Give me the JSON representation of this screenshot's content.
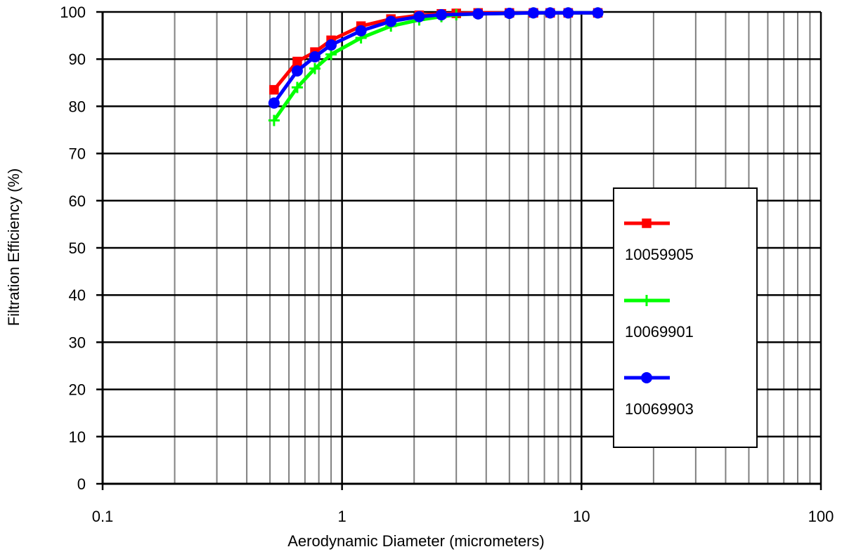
{
  "chart_data": {
    "type": "line",
    "title": "",
    "xlabel": "Aerodynamic Diameter (micrometers)",
    "ylabel": "Filtration Efficiency (%)",
    "x_scale": "log",
    "xlim": [
      0.1,
      100
    ],
    "ylim": [
      0,
      100
    ],
    "x_ticks": [
      0.1,
      1,
      10,
      100
    ],
    "x_tick_labels": [
      "0.1",
      "1",
      "10",
      "100"
    ],
    "y_ticks": [
      0,
      10,
      20,
      30,
      40,
      50,
      60,
      70,
      80,
      90,
      100
    ],
    "y_tick_labels": [
      "0",
      "10",
      "20",
      "30",
      "40",
      "50",
      "60",
      "70",
      "80",
      "90",
      "100"
    ],
    "grid": true,
    "legend_position": "right",
    "series": [
      {
        "name": "10059905",
        "color": "#ff0000",
        "marker": "square",
        "points": [
          [
            0.52,
            83.5
          ],
          [
            0.65,
            89.5
          ],
          [
            0.77,
            91.5
          ],
          [
            0.9,
            94.0
          ],
          [
            1.2,
            97.0
          ],
          [
            1.6,
            98.5
          ],
          [
            2.1,
            99.3
          ],
          [
            2.6,
            99.6
          ],
          [
            3.0,
            99.7
          ],
          [
            3.7,
            99.8
          ],
          [
            5.0,
            99.8
          ],
          [
            6.3,
            99.8
          ],
          [
            7.4,
            99.8
          ],
          [
            8.8,
            99.8
          ],
          [
            11.7,
            99.8
          ]
        ]
      },
      {
        "name": "10069901",
        "color": "#00ff00",
        "marker": "plus",
        "points": [
          [
            0.52,
            77.0
          ],
          [
            0.65,
            84.0
          ],
          [
            0.77,
            88.0
          ],
          [
            0.9,
            91.0
          ],
          [
            1.2,
            94.5
          ],
          [
            1.6,
            97.0
          ],
          [
            2.1,
            98.3
          ],
          [
            2.6,
            99.0
          ],
          [
            3.0,
            99.4
          ],
          [
            3.7,
            99.6
          ],
          [
            5.0,
            99.7
          ],
          [
            6.3,
            99.8
          ],
          [
            7.4,
            99.8
          ],
          [
            8.8,
            99.8
          ],
          [
            11.7,
            99.8
          ]
        ]
      },
      {
        "name": "10069903",
        "color": "#0000ff",
        "marker": "circle",
        "points": [
          [
            0.52,
            80.7
          ],
          [
            0.65,
            87.5
          ],
          [
            0.77,
            90.5
          ],
          [
            0.9,
            93.0
          ],
          [
            1.2,
            96.0
          ],
          [
            1.6,
            98.0
          ],
          [
            2.1,
            99.0
          ],
          [
            2.6,
            99.4
          ],
          [
            3.7,
            99.6
          ],
          [
            5.0,
            99.7
          ],
          [
            6.3,
            99.8
          ],
          [
            7.4,
            99.8
          ],
          [
            8.8,
            99.8
          ],
          [
            11.7,
            99.8
          ]
        ]
      }
    ]
  }
}
